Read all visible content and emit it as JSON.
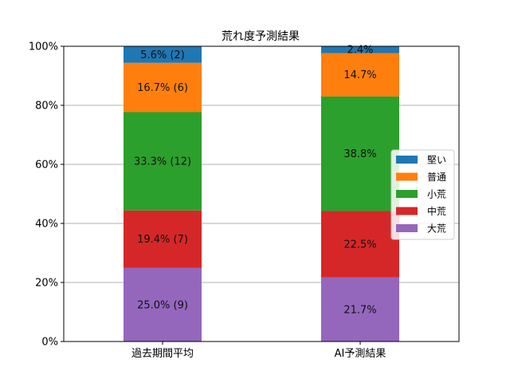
{
  "chart_data": {
    "type": "bar",
    "stacked": true,
    "title": "荒れ度予測結果",
    "categories": [
      "過去期間平均",
      "AI予測結果"
    ],
    "series": [
      {
        "name": "大荒",
        "color": "#9467bd",
        "values": [
          25.0,
          21.7
        ],
        "labels": [
          "25.0% (9)",
          "21.7%"
        ]
      },
      {
        "name": "中荒",
        "color": "#d62728",
        "values": [
          19.4,
          22.5
        ],
        "labels": [
          "19.4% (7)",
          "22.5%"
        ]
      },
      {
        "name": "小荒",
        "color": "#2ca02c",
        "values": [
          33.3,
          38.8
        ],
        "labels": [
          "33.3% (12)",
          "38.8%"
        ]
      },
      {
        "name": "普通",
        "color": "#ff7f0e",
        "values": [
          16.7,
          14.7
        ],
        "labels": [
          "16.7% (6)",
          "14.7%"
        ]
      },
      {
        "name": "堅い",
        "color": "#1f77b4",
        "values": [
          5.6,
          2.4
        ],
        "labels": [
          "5.6% (2)",
          "2.4%"
        ]
      }
    ],
    "legend_order": [
      "堅い",
      "普通",
      "小荒",
      "中荒",
      "大荒"
    ],
    "ylim": [
      0,
      100
    ],
    "yticks": [
      "0%",
      "20%",
      "40%",
      "60%",
      "80%",
      "100%"
    ],
    "grid": "y",
    "legend_position": "right"
  }
}
